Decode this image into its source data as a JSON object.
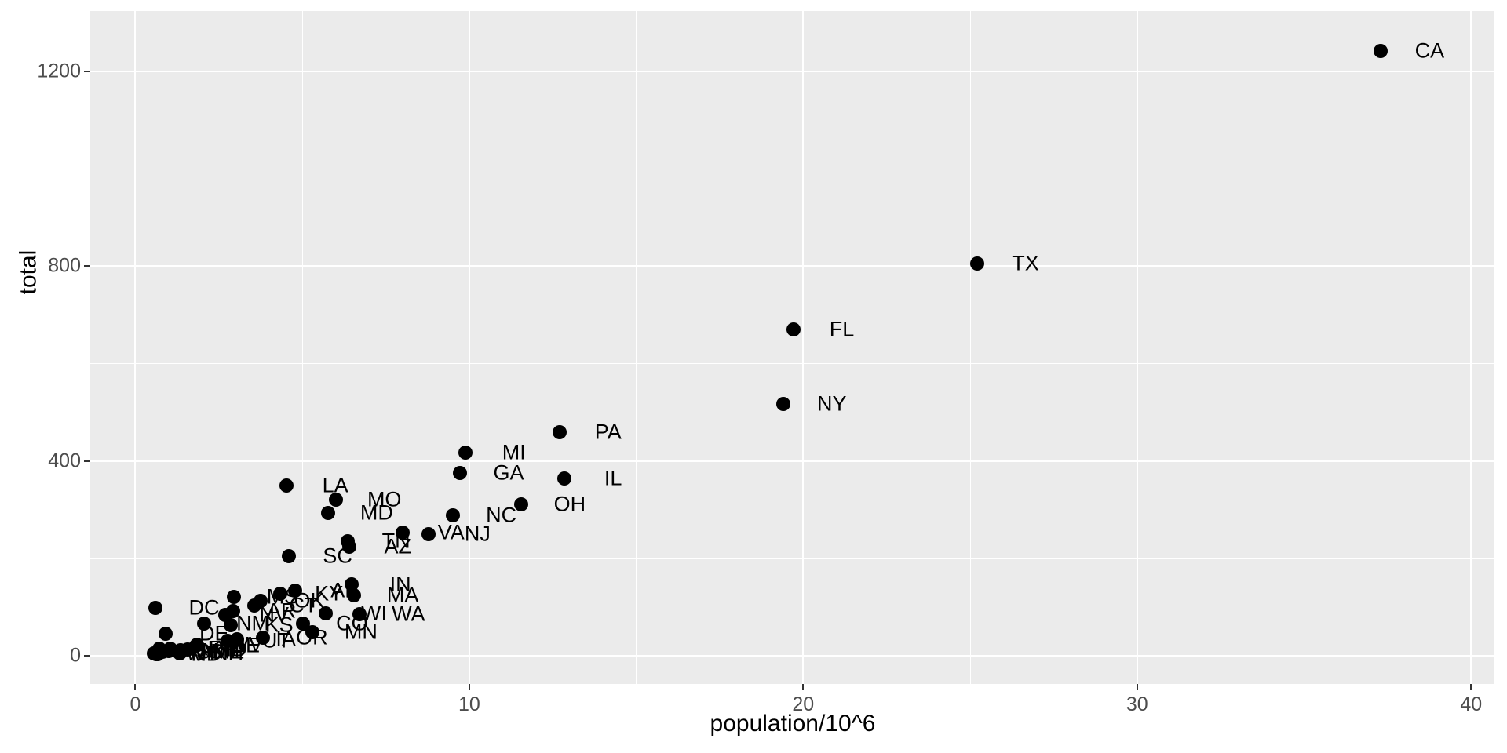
{
  "chart_data": {
    "type": "scatter",
    "title": "",
    "xlabel": "population/10^6",
    "ylabel": "total",
    "xlim": [
      -1.35,
      40.7
    ],
    "ylim": [
      -57.5,
      1324
    ],
    "x_major_ticks": [
      0,
      10,
      20,
      30,
      40
    ],
    "y_major_ticks": [
      0,
      400,
      800,
      1200
    ],
    "x_minor_ticks": [
      5,
      15,
      25,
      35
    ],
    "y_minor_ticks": [
      200,
      600,
      1000
    ],
    "grid": "major and minor, white on grey panel",
    "legend_position": "none",
    "panel_bg": "#EBEBEB",
    "point_color": "#000000",
    "axis_text_color": "#4D4D4D",
    "points": [
      {
        "label": "CA",
        "x": 37.3,
        "y": 1242
      },
      {
        "label": "TX",
        "x": 25.2,
        "y": 806
      },
      {
        "label": "FL",
        "x": 19.7,
        "y": 670
      },
      {
        "label": "NY",
        "x": 19.4,
        "y": 517
      },
      {
        "label": "PA",
        "x": 12.7,
        "y": 459
      },
      {
        "label": "IL",
        "x": 12.85,
        "y": 364
      },
      {
        "label": "OH",
        "x": 11.55,
        "y": 312
      },
      {
        "label": "MI",
        "x": 9.88,
        "y": 417
      },
      {
        "label": "GA",
        "x": 9.72,
        "y": 376
      },
      {
        "label": "NC",
        "x": 9.5,
        "y": 289
      },
      {
        "label": "NJ",
        "x": 8.79,
        "y": 250
      },
      {
        "label": "VA",
        "x": 8.0,
        "y": 254
      },
      {
        "label": "WA",
        "x": 6.72,
        "y": 85
      },
      {
        "label": "MA",
        "x": 6.55,
        "y": 125
      },
      {
        "label": "IN",
        "x": 6.48,
        "y": 147
      },
      {
        "label": "AZ",
        "x": 6.4,
        "y": 225
      },
      {
        "label": "TN",
        "x": 6.35,
        "y": 236
      },
      {
        "label": "MO",
        "x": 6.0,
        "y": 321
      },
      {
        "label": "MD",
        "x": 5.77,
        "y": 294
      },
      {
        "label": "WI",
        "x": 5.69,
        "y": 88
      },
      {
        "label": "MN",
        "x": 5.3,
        "y": 48
      },
      {
        "label": "CO",
        "x": 5.03,
        "y": 66
      },
      {
        "label": "AL",
        "x": 4.78,
        "y": 134
      },
      {
        "label": "SC",
        "x": 4.6,
        "y": 205
      },
      {
        "label": "LA",
        "x": 4.53,
        "y": 350
      },
      {
        "label": "KY",
        "x": 4.34,
        "y": 128
      },
      {
        "label": "OR",
        "x": 3.83,
        "y": 37
      },
      {
        "label": "OK",
        "x": 3.75,
        "y": 113
      },
      {
        "label": "CT",
        "x": 3.57,
        "y": 104
      },
      {
        "label": "IA",
        "x": 3.05,
        "y": 34
      },
      {
        "label": "MS",
        "x": 2.95,
        "y": 122
      },
      {
        "label": "AR",
        "x": 2.92,
        "y": 93
      },
      {
        "label": "KS",
        "x": 2.85,
        "y": 63
      },
      {
        "label": "UT",
        "x": 2.76,
        "y": 31
      },
      {
        "label": "NV",
        "x": 2.7,
        "y": 84
      },
      {
        "label": "NM",
        "x": 2.06,
        "y": 67
      },
      {
        "label": "WV",
        "x": 1.85,
        "y": 23
      },
      {
        "label": "NE",
        "x": 1.83,
        "y": 21
      },
      {
        "label": "ID",
        "x": 1.57,
        "y": 14
      },
      {
        "label": "HI",
        "x": 1.36,
        "y": 12
      },
      {
        "label": "ME",
        "x": 1.33,
        "y": 8
      },
      {
        "label": "NH",
        "x": 1.32,
        "y": 6
      },
      {
        "label": "RI",
        "x": 1.05,
        "y": 15
      },
      {
        "label": "MT",
        "x": 0.99,
        "y": 10
      },
      {
        "label": "DE",
        "x": 0.9,
        "y": 45
      },
      {
        "label": "SD",
        "x": 0.81,
        "y": 8
      },
      {
        "label": "AK",
        "x": 0.71,
        "y": 15
      },
      {
        "label": "ND",
        "x": 0.67,
        "y": 4
      },
      {
        "label": "VT",
        "x": 0.63,
        "y": 3
      },
      {
        "label": "WY",
        "x": 0.56,
        "y": 5
      },
      {
        "label": "DC",
        "x": 0.6,
        "y": 99
      }
    ]
  }
}
